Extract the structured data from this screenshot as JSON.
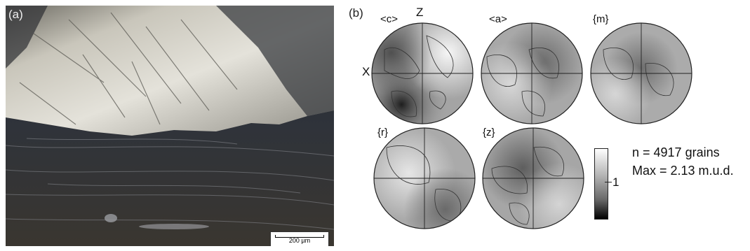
{
  "panel_a": {
    "label": "(a)",
    "scale_bar_text": "200 µm"
  },
  "panel_b": {
    "label": "(b)",
    "axis_z": "Z",
    "axis_x": "X",
    "pole_figures": [
      {
        "id": "c",
        "label": "<c>",
        "tone": "mixed"
      },
      {
        "id": "a",
        "label": "<a>",
        "tone": "medium"
      },
      {
        "id": "m",
        "label": "{m}",
        "tone": "medium"
      },
      {
        "id": "r",
        "label": "{r}",
        "tone": "light"
      },
      {
        "id": "z",
        "label": "{z}",
        "tone": "medium"
      }
    ],
    "colorbar_value": "1",
    "colorbar_colors": [
      "#ffffff",
      "#b0b0b0",
      "#6a6a6a",
      "#000000"
    ],
    "stats": {
      "n": "n = 4917 grains",
      "max": "Max = 2.13 m.u.d."
    }
  }
}
